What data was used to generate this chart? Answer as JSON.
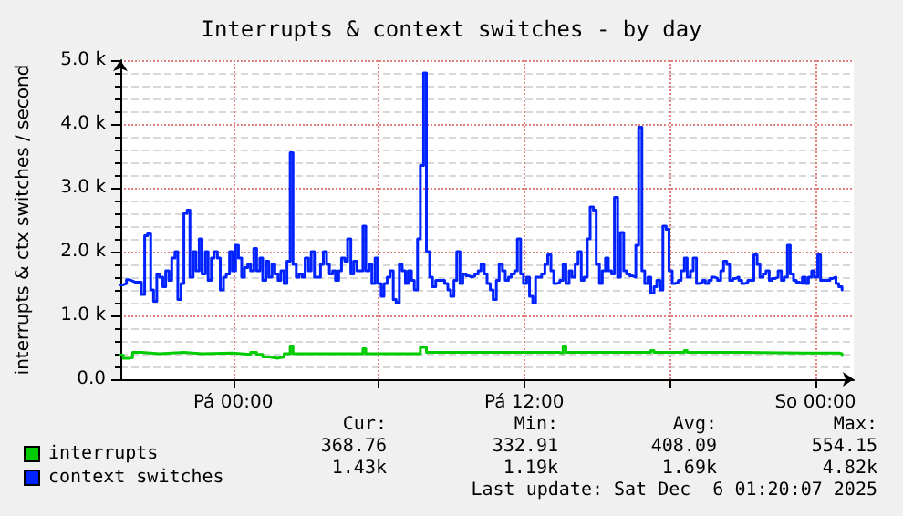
{
  "chart_data": {
    "type": "step",
    "title": "Interrupts & context switches - by day",
    "ylabel": "interrupts & ctx switches / second",
    "xlim": [
      "2025-12-04T19:21",
      "2025-12-06T01:35"
    ],
    "xticks": [
      {
        "value": "2025-12-05T00:00",
        "label": "Pá 00:00"
      },
      {
        "value": "2025-12-05T06:00",
        "label": null
      },
      {
        "value": "2025-12-05T12:00",
        "label": "Pá 12:00"
      },
      {
        "value": "2025-12-05T18:00",
        "label": null
      },
      {
        "value": "2025-12-06T00:00",
        "label": "So 00:00"
      }
    ],
    "ylim": [
      0,
      5000
    ],
    "yticks": [
      {
        "value": 0,
        "label": "0.0"
      },
      {
        "value": 1000,
        "label": "1.0 k"
      },
      {
        "value": 2000,
        "label": "2.0 k"
      },
      {
        "value": 3000,
        "label": "3.0 k"
      },
      {
        "value": 4000,
        "label": "4.0 k"
      },
      {
        "value": 5000,
        "label": "5.0 k"
      }
    ],
    "grid": true,
    "legend": "bottom left",
    "marker": "none",
    "line_style": "solid",
    "x": [
      "2025-12-04T19:21",
      "2025-12-04T19:28",
      "2025-12-04T19:36",
      "2025-12-04T19:43",
      "2025-12-04T19:51",
      "2025-12-04T19:58",
      "2025-12-04T20:06",
      "2025-12-04T20:13",
      "2025-12-04T20:21",
      "2025-12-04T20:28",
      "2025-12-04T20:36",
      "2025-12-04T20:43",
      "2025-12-04T20:51",
      "2025-12-04T20:58",
      "2025-12-04T21:06",
      "2025-12-04T21:13",
      "2025-12-04T21:21",
      "2025-12-04T21:28",
      "2025-12-04T21:36",
      "2025-12-04T21:43",
      "2025-12-04T21:51",
      "2025-12-04T21:58",
      "2025-12-04T22:06",
      "2025-12-04T22:13",
      "2025-12-04T22:21",
      "2025-12-04T22:28",
      "2025-12-04T22:36",
      "2025-12-04T22:43",
      "2025-12-04T22:51",
      "2025-12-04T22:58",
      "2025-12-04T23:06",
      "2025-12-04T23:13",
      "2025-12-04T23:21",
      "2025-12-04T23:28",
      "2025-12-04T23:36",
      "2025-12-04T23:43",
      "2025-12-04T23:51",
      "2025-12-04T23:58",
      "2025-12-05T00:06",
      "2025-12-05T00:13",
      "2025-12-05T00:21",
      "2025-12-05T00:28",
      "2025-12-05T00:36",
      "2025-12-05T00:43",
      "2025-12-05T00:51",
      "2025-12-05T00:58",
      "2025-12-05T01:06",
      "2025-12-05T01:13",
      "2025-12-05T01:21",
      "2025-12-05T01:28",
      "2025-12-05T01:36",
      "2025-12-05T01:43",
      "2025-12-05T01:51",
      "2025-12-05T01:58",
      "2025-12-05T02:06",
      "2025-12-05T02:13",
      "2025-12-05T02:21",
      "2025-12-05T02:28",
      "2025-12-05T02:36",
      "2025-12-05T02:43",
      "2025-12-05T02:51",
      "2025-12-05T02:58",
      "2025-12-05T03:06",
      "2025-12-05T03:13",
      "2025-12-05T03:21",
      "2025-12-05T03:28",
      "2025-12-05T03:36",
      "2025-12-05T03:43",
      "2025-12-05T03:51",
      "2025-12-05T03:58",
      "2025-12-05T04:06",
      "2025-12-05T04:13",
      "2025-12-05T04:21",
      "2025-12-05T04:28",
      "2025-12-05T04:36",
      "2025-12-05T04:43",
      "2025-12-05T04:51",
      "2025-12-05T04:58",
      "2025-12-05T05:06",
      "2025-12-05T05:13",
      "2025-12-05T05:21",
      "2025-12-05T05:28",
      "2025-12-05T05:36",
      "2025-12-05T05:43",
      "2025-12-05T05:51",
      "2025-12-05T05:58",
      "2025-12-05T06:06",
      "2025-12-05T06:13",
      "2025-12-05T06:21",
      "2025-12-05T06:28",
      "2025-12-05T06:36",
      "2025-12-05T06:43",
      "2025-12-05T06:51",
      "2025-12-05T06:58",
      "2025-12-05T07:06",
      "2025-12-05T07:13",
      "2025-12-05T07:21",
      "2025-12-05T07:28",
      "2025-12-05T07:36",
      "2025-12-05T07:43",
      "2025-12-05T07:51",
      "2025-12-05T07:58",
      "2025-12-05T08:06",
      "2025-12-05T08:13",
      "2025-12-05T08:21",
      "2025-12-05T08:28",
      "2025-12-05T08:36",
      "2025-12-05T08:43",
      "2025-12-05T08:51",
      "2025-12-05T08:58",
      "2025-12-05T09:06",
      "2025-12-05T09:13",
      "2025-12-05T09:21",
      "2025-12-05T09:28",
      "2025-12-05T09:36",
      "2025-12-05T09:43",
      "2025-12-05T09:51",
      "2025-12-05T09:58",
      "2025-12-05T10:06",
      "2025-12-05T10:13",
      "2025-12-05T10:21",
      "2025-12-05T10:28",
      "2025-12-05T10:36",
      "2025-12-05T10:43",
      "2025-12-05T10:51",
      "2025-12-05T10:58",
      "2025-12-05T11:06",
      "2025-12-05T11:13",
      "2025-12-05T11:21",
      "2025-12-05T11:28",
      "2025-12-05T11:36",
      "2025-12-05T11:43",
      "2025-12-05T11:51",
      "2025-12-05T11:58",
      "2025-12-05T12:06",
      "2025-12-05T12:13",
      "2025-12-05T12:21",
      "2025-12-05T12:28",
      "2025-12-05T12:36",
      "2025-12-05T12:43",
      "2025-12-05T12:51",
      "2025-12-05T12:58",
      "2025-12-05T13:06",
      "2025-12-05T13:13",
      "2025-12-05T13:21",
      "2025-12-05T13:28",
      "2025-12-05T13:36",
      "2025-12-05T13:43",
      "2025-12-05T13:51",
      "2025-12-05T13:58",
      "2025-12-05T14:06",
      "2025-12-05T14:13",
      "2025-12-05T14:21",
      "2025-12-05T14:28",
      "2025-12-05T14:36",
      "2025-12-05T14:43",
      "2025-12-05T14:51",
      "2025-12-05T14:58",
      "2025-12-05T15:06",
      "2025-12-05T15:13",
      "2025-12-05T15:21",
      "2025-12-05T15:28",
      "2025-12-05T15:36",
      "2025-12-05T15:43",
      "2025-12-05T15:51",
      "2025-12-05T15:58",
      "2025-12-05T16:06",
      "2025-12-05T16:13",
      "2025-12-05T16:21",
      "2025-12-05T16:28",
      "2025-12-05T16:36",
      "2025-12-05T16:43",
      "2025-12-05T16:51",
      "2025-12-05T16:58",
      "2025-12-05T17:06",
      "2025-12-05T17:13",
      "2025-12-05T17:21",
      "2025-12-05T17:28",
      "2025-12-05T17:36",
      "2025-12-05T17:43",
      "2025-12-05T17:51",
      "2025-12-05T17:58",
      "2025-12-05T18:06",
      "2025-12-05T18:13",
      "2025-12-05T18:21",
      "2025-12-05T18:28",
      "2025-12-05T18:36",
      "2025-12-05T18:43",
      "2025-12-05T18:51",
      "2025-12-05T18:58",
      "2025-12-05T19:06",
      "2025-12-05T19:13",
      "2025-12-05T19:21",
      "2025-12-05T19:28",
      "2025-12-05T19:36",
      "2025-12-05T19:43",
      "2025-12-05T19:51",
      "2025-12-05T19:58",
      "2025-12-05T20:06",
      "2025-12-05T20:13",
      "2025-12-05T20:21",
      "2025-12-05T20:28",
      "2025-12-05T20:36",
      "2025-12-05T20:43",
      "2025-12-05T20:51",
      "2025-12-05T20:58",
      "2025-12-05T21:06",
      "2025-12-05T21:13",
      "2025-12-05T21:21",
      "2025-12-05T21:28",
      "2025-12-05T21:36",
      "2025-12-05T21:43",
      "2025-12-05T21:51",
      "2025-12-05T21:58",
      "2025-12-05T22:06",
      "2025-12-05T22:13",
      "2025-12-05T22:21",
      "2025-12-05T22:28",
      "2025-12-05T22:36",
      "2025-12-05T22:43",
      "2025-12-05T22:51",
      "2025-12-05T22:58",
      "2025-12-05T23:06",
      "2025-12-05T23:13",
      "2025-12-05T23:21",
      "2025-12-05T23:28",
      "2025-12-05T23:36",
      "2025-12-05T23:43",
      "2025-12-05T23:51",
      "2025-12-05T23:58",
      "2025-12-06T00:06",
      "2025-12-06T00:13",
      "2025-12-06T00:21",
      "2025-12-06T00:28",
      "2025-12-06T00:36",
      "2025-12-06T00:43",
      "2025-12-06T00:51",
      "2025-12-06T00:58",
      "2025-12-06T01:06"
    ],
    "series": [
      {
        "name": "interrupts",
        "color": "#00cc00",
        "x": [
          "2025-12-04T19:21",
          "2025-12-04T19:28",
          "2025-12-04T19:43",
          "2025-12-04T19:51",
          "2025-12-04T20:13",
          "2025-12-04T20:58",
          "2025-12-04T21:58",
          "2025-12-04T22:43",
          "2025-12-04T23:58",
          "2025-12-05T00:43",
          "2025-12-05T00:58",
          "2025-12-05T01:13",
          "2025-12-05T01:28",
          "2025-12-05T01:51",
          "2025-12-05T02:06",
          "2025-12-05T02:13",
          "2025-12-05T02:21",
          "2025-12-05T02:28",
          "2025-12-05T04:13",
          "2025-12-05T05:21",
          "2025-12-05T05:28",
          "2025-12-05T07:43",
          "2025-12-05T07:58",
          "2025-12-05T09:13",
          "2025-12-05T10:58",
          "2025-12-05T12:13",
          "2025-12-05T13:28",
          "2025-12-05T13:36",
          "2025-12-05T13:43",
          "2025-12-05T15:58",
          "2025-12-05T17:13",
          "2025-12-05T17:21",
          "2025-12-05T18:36",
          "2025-12-05T18:43",
          "2025-12-05T20:58",
          "2025-12-05T23:28",
          "2025-12-06T00:58",
          "2025-12-06T01:06"
        ],
        "values": [
          380,
          330,
          340,
          420,
          400,
          420,
          400,
          410,
          390,
          420,
          390,
          350,
          330,
          350,
          400,
          400,
          520,
          400,
          400,
          480,
          400,
          500,
          420,
          420,
          420,
          420,
          410,
          520,
          420,
          420,
          450,
          420,
          450,
          420,
          410,
          410,
          400,
          370
        ]
      },
      {
        "name": "context switches",
        "color": "#0022ff",
        "values": [
          1480,
          1500,
          1560,
          1540,
          1520,
          1520,
          1520,
          1330,
          2250,
          2280,
          1400,
          1220,
          1650,
          1600,
          1450,
          1700,
          1550,
          1900,
          2000,
          1250,
          1500,
          2600,
          2650,
          1600,
          2000,
          1700,
          2200,
          1650,
          2000,
          1550,
          1900,
          2000,
          1900,
          1400,
          1600,
          1650,
          2000,
          1700,
          2100,
          1900,
          1600,
          1750,
          1800,
          1700,
          2050,
          1700,
          1900,
          1550,
          1850,
          1600,
          1800,
          1650,
          1550,
          1700,
          1500,
          1850,
          3550,
          1800,
          1600,
          1650,
          1600,
          1900,
          1700,
          2000,
          1600,
          1600,
          1800,
          2000,
          1800,
          1650,
          1700,
          1550,
          1700,
          1900,
          1850,
          2200,
          1650,
          1850,
          1700,
          1700,
          2400,
          1700,
          1800,
          1500,
          1900,
          1500,
          1300,
          1500,
          1600,
          1700,
          1250,
          1200,
          1800,
          1700,
          1500,
          1700,
          1550,
          1400,
          2200,
          3350,
          4800,
          2000,
          1600,
          1450,
          1550,
          1550,
          1550,
          1500,
          1400,
          1300,
          1550,
          2000,
          1500,
          1650,
          1620,
          1600,
          1620,
          1650,
          1700,
          1800,
          1650,
          1500,
          1400,
          1250,
          1550,
          1800,
          1700,
          1550,
          1600,
          1650,
          1700,
          2200,
          1650,
          1500,
          1600,
          1300,
          1200,
          1600,
          1600,
          1650,
          1800,
          1950,
          1700,
          1500,
          1520,
          1550,
          1800,
          1500,
          1700,
          1600,
          1800,
          2000,
          1550,
          1600,
          2200,
          2700,
          2650,
          1800,
          1500,
          1700,
          1900,
          1700,
          1650,
          2850,
          1600,
          2300,
          1700,
          1650,
          1620,
          1600,
          2100,
          3950,
          1700,
          1500,
          1600,
          1350,
          1450,
          1550,
          1400,
          2400,
          2350,
          1700,
          1500,
          1520,
          1550,
          1700,
          1900,
          1600,
          1700,
          1900,
          1500,
          1520,
          1550,
          1500,
          1550,
          1600,
          1580,
          1550,
          1700,
          1850,
          1800,
          1550,
          1580,
          1600,
          1550,
          1500,
          1520,
          1550,
          1550,
          1950,
          1800,
          1600,
          1650,
          1700,
          1550,
          1580,
          1600,
          1700,
          1550,
          1600,
          2100,
          1650,
          1550,
          1520,
          1500,
          1600,
          1500,
          1600,
          1700,
          1600,
          1950,
          1550,
          1550,
          1550,
          1580,
          1600,
          1500,
          1450,
          1400
        ]
      }
    ],
    "annotations": [
      "Cur:",
      "Min:",
      "Avg:",
      "Max:",
      "368.76",
      "332.91",
      "408.09",
      "554.15",
      "1.43k",
      "1.19k",
      "1.69k",
      "4.82k",
      "Last update: Sat Dec  6 01:20:07 2025"
    ]
  }
}
